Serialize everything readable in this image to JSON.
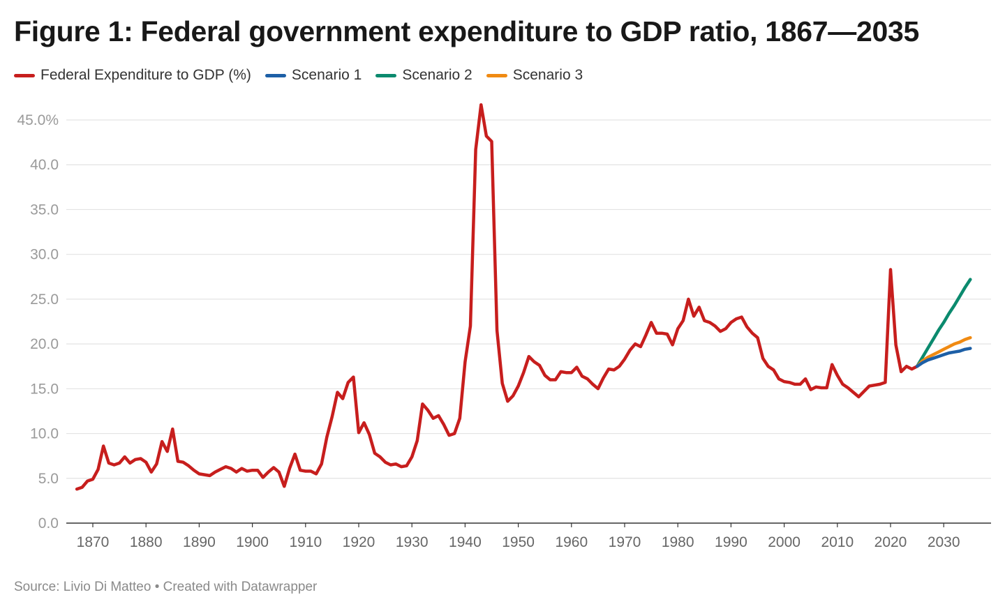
{
  "title": "Figure 1: Federal government expenditure to GDP ratio, 1867—2035",
  "source": "Source: Livio Di Matteo • Created with Datawrapper",
  "legend": [
    {
      "name": "Federal Expenditure to GDP (%)",
      "color": "#c71e1d"
    },
    {
      "name": "Scenario 1",
      "color": "#1d5fa6"
    },
    {
      "name": "Scenario 2",
      "color": "#0b8a6e"
    },
    {
      "name": "Scenario 3",
      "color": "#f08a12"
    }
  ],
  "chart_data": {
    "type": "line",
    "title": "Figure 1: Federal government expenditure to GDP ratio, 1867—2035",
    "xlabel": "",
    "ylabel": "",
    "xlim": [
      1867,
      2035
    ],
    "ylim": [
      0,
      45
    ],
    "grid": true,
    "legend_position": "top-left",
    "y_ticks": [
      {
        "value": 0,
        "label": "0.0"
      },
      {
        "value": 5,
        "label": "5.0"
      },
      {
        "value": 10,
        "label": "10.0"
      },
      {
        "value": 15,
        "label": "15.0"
      },
      {
        "value": 20,
        "label": "20.0"
      },
      {
        "value": 25,
        "label": "25.0"
      },
      {
        "value": 30,
        "label": "30.0"
      },
      {
        "value": 35,
        "label": "35.0"
      },
      {
        "value": 40,
        "label": "40.0"
      },
      {
        "value": 45,
        "label": "45.0%"
      }
    ],
    "x_ticks": [
      {
        "value": 1870,
        "label": "1870"
      },
      {
        "value": 1880,
        "label": "1880"
      },
      {
        "value": 1890,
        "label": "1890"
      },
      {
        "value": 1900,
        "label": "1900"
      },
      {
        "value": 1910,
        "label": "1910"
      },
      {
        "value": 1920,
        "label": "1920"
      },
      {
        "value": 1930,
        "label": "1930"
      },
      {
        "value": 1940,
        "label": "1940"
      },
      {
        "value": 1950,
        "label": "1950"
      },
      {
        "value": 1960,
        "label": "1960"
      },
      {
        "value": 1970,
        "label": "1970"
      },
      {
        "value": 1980,
        "label": "1980"
      },
      {
        "value": 1990,
        "label": "1990"
      },
      {
        "value": 2000,
        "label": "2000"
      },
      {
        "value": 2010,
        "label": "2010"
      },
      {
        "value": 2020,
        "label": "2020"
      },
      {
        "value": 2030,
        "label": "2030"
      }
    ],
    "series": [
      {
        "name": "Federal Expenditure to GDP (%)",
        "color": "#c71e1d",
        "points": [
          [
            1867,
            3.8
          ],
          [
            1868,
            4.0
          ],
          [
            1869,
            4.7
          ],
          [
            1870,
            4.9
          ],
          [
            1871,
            6.0
          ],
          [
            1872,
            8.6
          ],
          [
            1873,
            6.7
          ],
          [
            1874,
            6.5
          ],
          [
            1875,
            6.7
          ],
          [
            1876,
            7.4
          ],
          [
            1877,
            6.7
          ],
          [
            1878,
            7.1
          ],
          [
            1879,
            7.2
          ],
          [
            1880,
            6.8
          ],
          [
            1881,
            5.7
          ],
          [
            1882,
            6.6
          ],
          [
            1883,
            9.1
          ],
          [
            1884,
            8.0
          ],
          [
            1885,
            10.5
          ],
          [
            1886,
            6.9
          ],
          [
            1887,
            6.8
          ],
          [
            1888,
            6.4
          ],
          [
            1889,
            5.9
          ],
          [
            1890,
            5.5
          ],
          [
            1891,
            5.4
          ],
          [
            1892,
            5.3
          ],
          [
            1893,
            5.7
          ],
          [
            1894,
            6.0
          ],
          [
            1895,
            6.3
          ],
          [
            1896,
            6.1
          ],
          [
            1897,
            5.7
          ],
          [
            1898,
            6.1
          ],
          [
            1899,
            5.8
          ],
          [
            1900,
            5.9
          ],
          [
            1901,
            5.9
          ],
          [
            1902,
            5.1
          ],
          [
            1903,
            5.7
          ],
          [
            1904,
            6.2
          ],
          [
            1905,
            5.7
          ],
          [
            1906,
            4.1
          ],
          [
            1907,
            6.1
          ],
          [
            1908,
            7.7
          ],
          [
            1909,
            5.9
          ],
          [
            1910,
            5.8
          ],
          [
            1911,
            5.8
          ],
          [
            1912,
            5.5
          ],
          [
            1913,
            6.6
          ],
          [
            1914,
            9.6
          ],
          [
            1915,
            11.9
          ],
          [
            1916,
            14.6
          ],
          [
            1917,
            13.9
          ],
          [
            1918,
            15.7
          ],
          [
            1919,
            16.3
          ],
          [
            1920,
            10.1
          ],
          [
            1921,
            11.2
          ],
          [
            1922,
            9.9
          ],
          [
            1923,
            7.8
          ],
          [
            1924,
            7.4
          ],
          [
            1925,
            6.8
          ],
          [
            1926,
            6.5
          ],
          [
            1927,
            6.6
          ],
          [
            1928,
            6.3
          ],
          [
            1929,
            6.4
          ],
          [
            1930,
            7.4
          ],
          [
            1931,
            9.2
          ],
          [
            1932,
            13.3
          ],
          [
            1933,
            12.6
          ],
          [
            1934,
            11.7
          ],
          [
            1935,
            12.0
          ],
          [
            1936,
            11.0
          ],
          [
            1937,
            9.8
          ],
          [
            1938,
            10.0
          ],
          [
            1939,
            11.7
          ],
          [
            1940,
            18.0
          ],
          [
            1941,
            22.0
          ],
          [
            1942,
            41.7
          ],
          [
            1943,
            46.7
          ],
          [
            1944,
            43.2
          ],
          [
            1945,
            42.6
          ],
          [
            1946,
            21.5
          ],
          [
            1947,
            15.6
          ],
          [
            1948,
            13.6
          ],
          [
            1949,
            14.2
          ],
          [
            1950,
            15.3
          ],
          [
            1951,
            16.8
          ],
          [
            1952,
            18.6
          ],
          [
            1953,
            18.0
          ],
          [
            1954,
            17.6
          ],
          [
            1955,
            16.5
          ],
          [
            1956,
            16.0
          ],
          [
            1957,
            16.0
          ],
          [
            1958,
            16.9
          ],
          [
            1959,
            16.8
          ],
          [
            1960,
            16.8
          ],
          [
            1961,
            17.4
          ],
          [
            1962,
            16.4
          ],
          [
            1963,
            16.1
          ],
          [
            1964,
            15.5
          ],
          [
            1965,
            15.0
          ],
          [
            1966,
            16.2
          ],
          [
            1967,
            17.2
          ],
          [
            1968,
            17.1
          ],
          [
            1969,
            17.5
          ],
          [
            1970,
            18.3
          ],
          [
            1971,
            19.3
          ],
          [
            1972,
            20.0
          ],
          [
            1973,
            19.7
          ],
          [
            1974,
            21.0
          ],
          [
            1975,
            22.4
          ],
          [
            1976,
            21.2
          ],
          [
            1977,
            21.2
          ],
          [
            1978,
            21.1
          ],
          [
            1979,
            19.9
          ],
          [
            1980,
            21.7
          ],
          [
            1981,
            22.6
          ],
          [
            1982,
            25.0
          ],
          [
            1983,
            23.1
          ],
          [
            1984,
            24.1
          ],
          [
            1985,
            22.6
          ],
          [
            1986,
            22.4
          ],
          [
            1987,
            22.0
          ],
          [
            1988,
            21.4
          ],
          [
            1989,
            21.7
          ],
          [
            1990,
            22.4
          ],
          [
            1991,
            22.8
          ],
          [
            1992,
            23.0
          ],
          [
            1993,
            21.9
          ],
          [
            1994,
            21.2
          ],
          [
            1995,
            20.7
          ],
          [
            1996,
            18.4
          ],
          [
            1997,
            17.5
          ],
          [
            1998,
            17.1
          ],
          [
            1999,
            16.1
          ],
          [
            2000,
            15.8
          ],
          [
            2001,
            15.7
          ],
          [
            2002,
            15.5
          ],
          [
            2003,
            15.5
          ],
          [
            2004,
            16.1
          ],
          [
            2005,
            14.9
          ],
          [
            2006,
            15.2
          ],
          [
            2007,
            15.1
          ],
          [
            2008,
            15.1
          ],
          [
            2009,
            17.7
          ],
          [
            2010,
            16.5
          ],
          [
            2011,
            15.5
          ],
          [
            2012,
            15.1
          ],
          [
            2013,
            14.6
          ],
          [
            2014,
            14.1
          ],
          [
            2015,
            14.7
          ],
          [
            2016,
            15.3
          ],
          [
            2017,
            15.4
          ],
          [
            2018,
            15.5
          ],
          [
            2019,
            15.7
          ],
          [
            2020,
            28.3
          ],
          [
            2021,
            19.9
          ],
          [
            2022,
            16.9
          ],
          [
            2023,
            17.5
          ],
          [
            2024,
            17.2
          ],
          [
            2025,
            17.5
          ]
        ]
      },
      {
        "name": "Scenario 1",
        "color": "#1d5fa6",
        "points": [
          [
            2025,
            17.5
          ],
          [
            2026,
            17.9
          ],
          [
            2027,
            18.2
          ],
          [
            2028,
            18.4
          ],
          [
            2029,
            18.6
          ],
          [
            2030,
            18.8
          ],
          [
            2031,
            19.0
          ],
          [
            2032,
            19.1
          ],
          [
            2033,
            19.2
          ],
          [
            2034,
            19.4
          ],
          [
            2035,
            19.5
          ]
        ]
      },
      {
        "name": "Scenario 2",
        "color": "#0b8a6e",
        "points": [
          [
            2025,
            17.5
          ],
          [
            2026,
            18.5
          ],
          [
            2027,
            19.5
          ],
          [
            2028,
            20.5
          ],
          [
            2029,
            21.5
          ],
          [
            2030,
            22.4
          ],
          [
            2031,
            23.4
          ],
          [
            2032,
            24.3
          ],
          [
            2033,
            25.3
          ],
          [
            2034,
            26.3
          ],
          [
            2035,
            27.2
          ]
        ]
      },
      {
        "name": "Scenario 3",
        "color": "#f08a12",
        "points": [
          [
            2025,
            17.5
          ],
          [
            2026,
            18.1
          ],
          [
            2027,
            18.5
          ],
          [
            2028,
            18.8
          ],
          [
            2029,
            19.1
          ],
          [
            2030,
            19.4
          ],
          [
            2031,
            19.7
          ],
          [
            2032,
            20.0
          ],
          [
            2033,
            20.2
          ],
          [
            2034,
            20.5
          ],
          [
            2035,
            20.7
          ]
        ]
      }
    ]
  }
}
